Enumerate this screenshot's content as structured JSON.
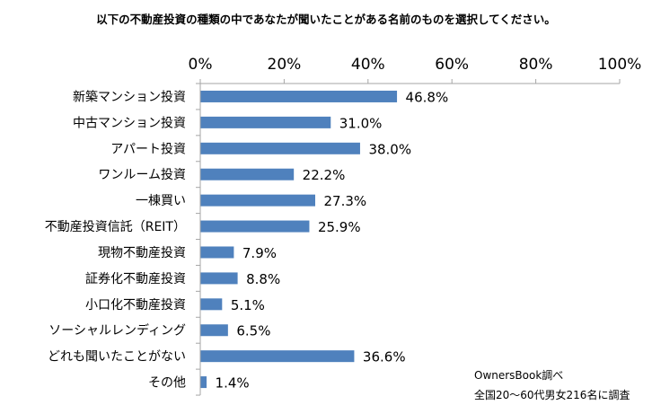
{
  "chart_data": {
    "type": "bar",
    "orientation": "horizontal",
    "title": "以下の不動産投資の種類の中であなたが聞いたことがある名前のものを選択してください。",
    "categories": [
      "新築マンション投資",
      "中古マンション投資",
      "アパート投資",
      "ワンルーム投資",
      "一棟買い",
      "不動産投資信託（REIT）",
      "現物不動産投資",
      "証券化不動産投資",
      "小口化不動産投資",
      "ソーシャルレンディング",
      "どれも聞いたことがない",
      "その他"
    ],
    "values": [
      46.8,
      31.0,
      38.0,
      22.2,
      27.3,
      25.9,
      7.9,
      8.8,
      5.1,
      6.5,
      36.6,
      1.4
    ],
    "value_labels": [
      "46.8%",
      "31.0%",
      "38.0%",
      "22.2%",
      "27.3%",
      "25.9%",
      "7.9%",
      "8.8%",
      "5.1%",
      "6.5%",
      "36.6%",
      "1.4%"
    ],
    "xlim": [
      0,
      100
    ],
    "x_ticks": [
      "0%",
      "20%",
      "40%",
      "60%",
      "80%",
      "100%"
    ],
    "x_axis_position": "top",
    "grid": false,
    "bar_color": "#4F81BD",
    "notes": [
      "OwnersBook調べ",
      "全国20～60代男女216名に調査"
    ]
  }
}
